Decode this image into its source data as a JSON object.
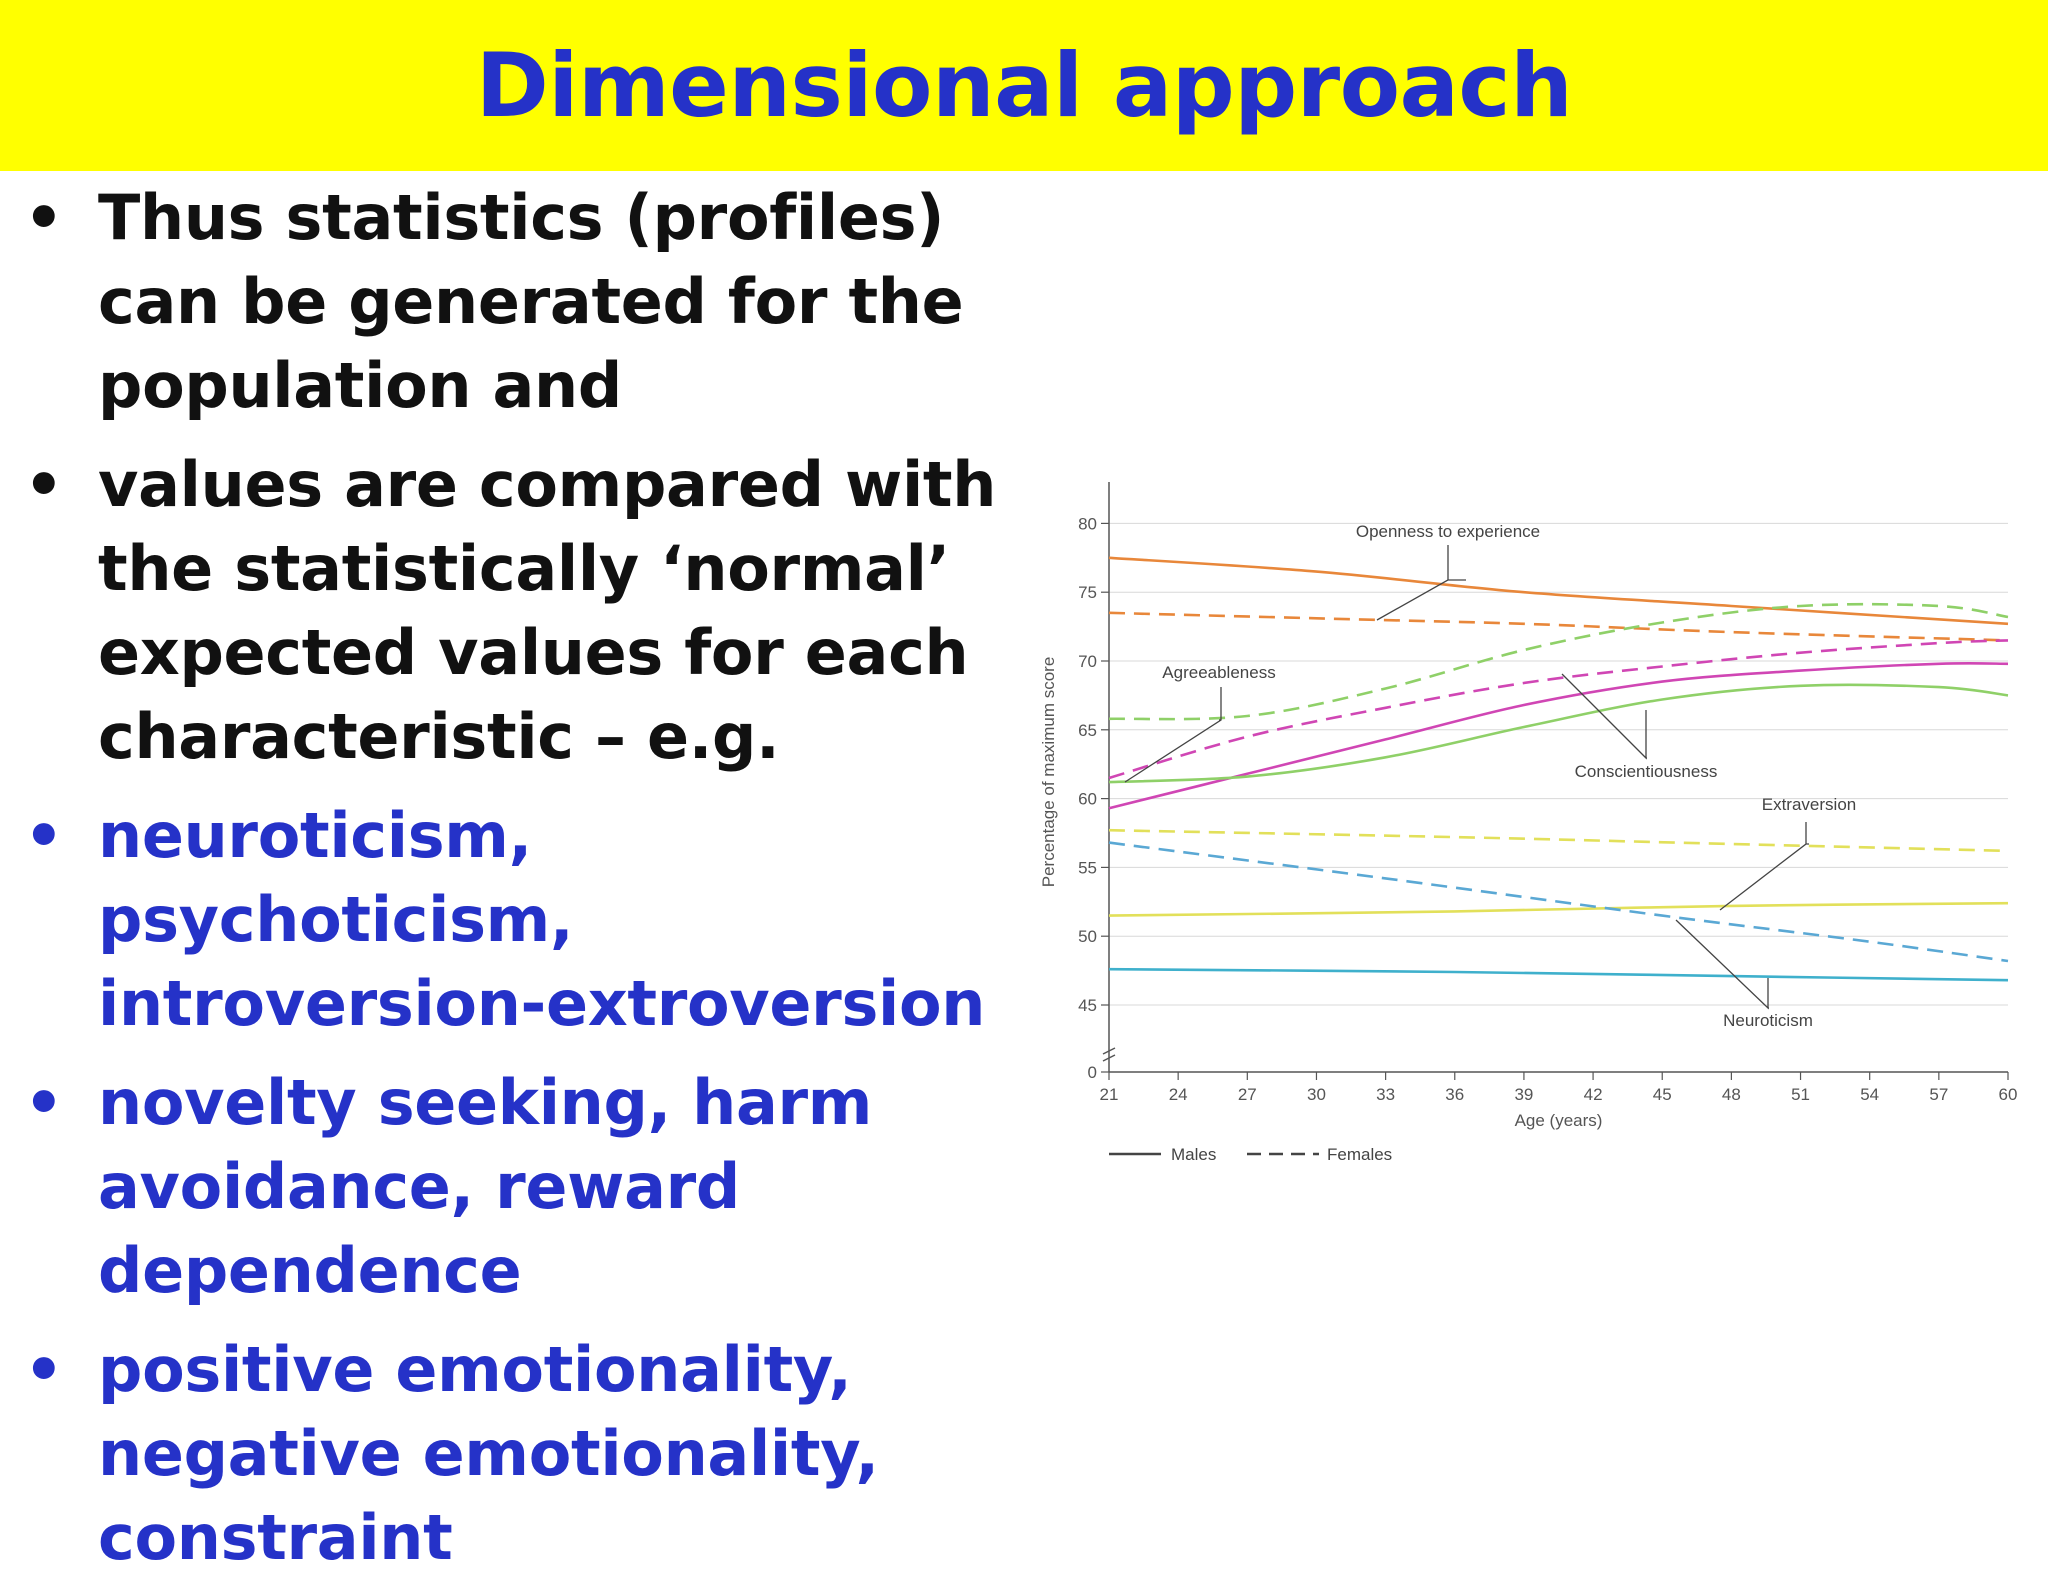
{
  "slide": {
    "title": "Dimensional approach",
    "bullets": [
      {
        "glyph": "•",
        "text": "Thus statistics (profiles) can be generated for the population and",
        "color": "#111111"
      },
      {
        "glyph": "•",
        "text": "values are compared with the statistically ‘normal’ expected values for each characteristic – e.g.",
        "color": "#111111"
      },
      {
        "glyph": "•",
        "text": " neuroticism, psychoticism, introversion-extroversion",
        "color": "#2532c8"
      },
      {
        "glyph": "•",
        "text": "novelty seeking, harm avoidance, reward dependence",
        "color": "#2532c8"
      },
      {
        "glyph": "•",
        "text": "positive emotionality, negative emotionality, constraint",
        "color": "#2532c8"
      }
    ],
    "colors": {
      "title_bar": "#ffff00",
      "title_text": "#2532c8",
      "blue_text": "#2532c8",
      "black_text": "#111111"
    }
  },
  "chart_data": {
    "type": "line",
    "xlabel": "Age (years)",
    "ylabel": "Percentage of maximum score",
    "x_ticks": [
      21,
      24,
      27,
      30,
      33,
      36,
      39,
      42,
      45,
      48,
      51,
      54,
      57,
      60
    ],
    "y_ticks": [
      0,
      45,
      50,
      55,
      60,
      65,
      70,
      75,
      80
    ],
    "axis_break": "between 0 and 45",
    "xlim": [
      21,
      60
    ],
    "grid": "horizontal",
    "legend": {
      "position": "bottom-left",
      "entries": [
        {
          "label": "Males",
          "style": "solid"
        },
        {
          "label": "Females",
          "style": "dashed"
        }
      ]
    },
    "series": [
      {
        "trait": "Openness to experience",
        "sex": "Males",
        "color": "#e8873a",
        "points": [
          [
            21,
            77.5
          ],
          [
            30,
            76.5
          ],
          [
            39,
            75.0
          ],
          [
            48,
            74.0
          ],
          [
            60,
            72.7
          ]
        ]
      },
      {
        "trait": "Openness to experience",
        "sex": "Females",
        "color": "#e8873a",
        "points": [
          [
            21,
            73.5
          ],
          [
            30,
            73.1
          ],
          [
            39,
            72.7
          ],
          [
            48,
            72.1
          ],
          [
            60,
            71.5
          ]
        ]
      },
      {
        "trait": "Agreeableness",
        "sex": "Males",
        "color": "#d046b4",
        "points": [
          [
            21,
            59.3
          ],
          [
            27,
            61.8
          ],
          [
            33,
            64.3
          ],
          [
            39,
            66.8
          ],
          [
            45,
            68.5
          ],
          [
            51,
            69.3
          ],
          [
            57,
            69.8
          ],
          [
            60,
            69.8
          ]
        ]
      },
      {
        "trait": "Agreeableness",
        "sex": "Females",
        "color": "#d046b4",
        "points": [
          [
            21,
            61.5
          ],
          [
            27,
            64.5
          ],
          [
            33,
            66.6
          ],
          [
            39,
            68.4
          ],
          [
            45,
            69.6
          ],
          [
            51,
            70.6
          ],
          [
            57,
            71.3
          ],
          [
            60,
            71.5
          ]
        ]
      },
      {
        "trait": "Conscientiousness",
        "sex": "Males",
        "color": "#8fd068",
        "points": [
          [
            21,
            61.2
          ],
          [
            27,
            61.6
          ],
          [
            33,
            63.0
          ],
          [
            39,
            65.2
          ],
          [
            45,
            67.2
          ],
          [
            51,
            68.2
          ],
          [
            57,
            68.1
          ],
          [
            60,
            67.5
          ]
        ]
      },
      {
        "trait": "Conscientiousness",
        "sex": "Females",
        "color": "#8fd068",
        "points": [
          [
            21,
            65.8
          ],
          [
            27,
            66.0
          ],
          [
            33,
            68.0
          ],
          [
            39,
            70.8
          ],
          [
            45,
            72.8
          ],
          [
            51,
            74.0
          ],
          [
            57,
            74.0
          ],
          [
            60,
            73.2
          ]
        ]
      },
      {
        "trait": "Extraversion",
        "sex": "Males",
        "color": "#e2e05a",
        "points": [
          [
            21,
            51.5
          ],
          [
            36,
            51.8
          ],
          [
            48,
            52.2
          ],
          [
            60,
            52.4
          ]
        ]
      },
      {
        "trait": "Extraversion",
        "sex": "Females",
        "color": "#e2e05a",
        "points": [
          [
            21,
            57.7
          ],
          [
            36,
            57.2
          ],
          [
            48,
            56.7
          ],
          [
            60,
            56.2
          ]
        ]
      },
      {
        "trait": "Neuroticism",
        "sex": "Males",
        "color": "#3fb0cc",
        "points": [
          [
            21,
            47.6
          ],
          [
            36,
            47.4
          ],
          [
            48,
            47.1
          ],
          [
            60,
            46.8
          ]
        ]
      },
      {
        "trait": "Neuroticism",
        "sex": "Females",
        "color": "#5aa8d4",
        "points": [
          [
            21,
            56.8
          ],
          [
            33,
            54.2
          ],
          [
            45,
            51.5
          ],
          [
            54,
            49.6
          ],
          [
            60,
            48.2
          ]
        ]
      }
    ],
    "annotations": [
      "Openness to experience",
      "Agreeableness",
      "Conscientiousness",
      "Extraversion",
      "Neuroticism"
    ]
  }
}
